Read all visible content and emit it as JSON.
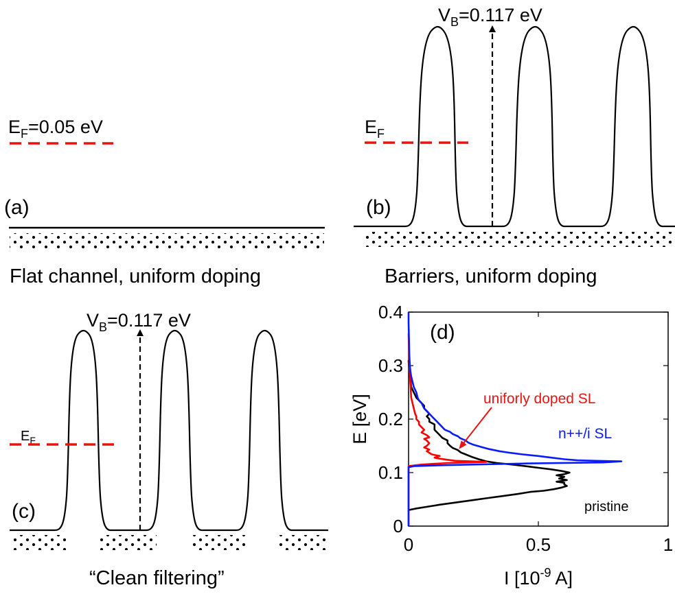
{
  "panels": {
    "a": {
      "letter": "(a)",
      "ef_label": "E",
      "ef_sub": "F",
      "ef_value": "=0.05 eV",
      "caption": "Flat channel, uniform doping"
    },
    "b": {
      "letter": "(b)",
      "ef_label": "E",
      "ef_sub": "F",
      "vb_label": "V",
      "vb_sub": "B",
      "vb_value": "=0.117 eV",
      "caption": "Barriers, uniform doping"
    },
    "c": {
      "letter": "(c)",
      "ef_label": "E",
      "ef_sub": "F",
      "vb_label": "V",
      "vb_sub": "B",
      "vb_value": "=0.117 eV",
      "caption": "“Clean filtering”"
    },
    "d": {
      "letter": "(d)"
    }
  },
  "colors": {
    "fermi_line": "#e8140c",
    "profile": "#000000",
    "pristine": "#000000",
    "uniform_sl": "#ff0000",
    "npp_sl": "#0a1aff",
    "annotation": "#e81414"
  },
  "chart_data": {
    "type": "line",
    "panel": "(d)",
    "xlabel": "I [10",
    "xlabel_exp": "-9",
    "xlabel_unit": " A]",
    "ylabel": "E [eV]",
    "xlim": [
      0,
      1
    ],
    "ylim": [
      0,
      0.4
    ],
    "xticks": [
      "0",
      "0.5",
      "1"
    ],
    "yticks": [
      "0",
      "0.1",
      "0.2",
      "0.3",
      "0.4"
    ],
    "grid": false,
    "series": [
      {
        "name": "pristine",
        "color": "#000000",
        "points": [
          [
            0,
            0.03
          ],
          [
            0.03,
            0.033
          ],
          [
            0.07,
            0.036
          ],
          [
            0.12,
            0.04
          ],
          [
            0.18,
            0.044
          ],
          [
            0.24,
            0.048
          ],
          [
            0.3,
            0.052
          ],
          [
            0.36,
            0.056
          ],
          [
            0.42,
            0.06
          ],
          [
            0.47,
            0.064
          ],
          [
            0.52,
            0.066
          ],
          [
            0.56,
            0.069
          ],
          [
            0.59,
            0.072
          ],
          [
            0.61,
            0.075
          ],
          [
            0.6,
            0.078
          ],
          [
            0.6,
            0.081
          ],
          [
            0.57,
            0.083
          ],
          [
            0.61,
            0.086
          ],
          [
            0.58,
            0.089
          ],
          [
            0.6,
            0.092
          ],
          [
            0.57,
            0.095
          ],
          [
            0.6,
            0.097
          ],
          [
            0.62,
            0.1
          ],
          [
            0.59,
            0.103
          ],
          [
            0.55,
            0.106
          ],
          [
            0.5,
            0.109
          ],
          [
            0.45,
            0.112
          ],
          [
            0.4,
            0.115
          ],
          [
            0.34,
            0.118
          ],
          [
            0.3,
            0.121
          ],
          [
            0.27,
            0.125
          ],
          [
            0.24,
            0.13
          ],
          [
            0.22,
            0.134
          ],
          [
            0.2,
            0.138
          ],
          [
            0.19,
            0.142
          ],
          [
            0.17,
            0.146
          ],
          [
            0.16,
            0.15
          ],
          [
            0.15,
            0.155
          ],
          [
            0.15,
            0.16
          ],
          [
            0.13,
            0.165
          ],
          [
            0.12,
            0.17
          ],
          [
            0.11,
            0.175
          ],
          [
            0.1,
            0.18
          ],
          [
            0.1,
            0.185
          ],
          [
            0.1,
            0.19
          ],
          [
            0.08,
            0.195
          ],
          [
            0.08,
            0.2
          ],
          [
            0.07,
            0.205
          ],
          [
            0.08,
            0.21
          ],
          [
            0.07,
            0.215
          ],
          [
            0.06,
            0.22
          ],
          [
            0.06,
            0.225
          ],
          [
            0.05,
            0.23
          ],
          [
            0.04,
            0.235
          ],
          [
            0.03,
            0.24
          ],
          [
            0.025,
            0.245
          ],
          [
            0.02,
            0.25
          ],
          [
            0.015,
            0.255
          ],
          [
            0.01,
            0.26
          ],
          [
            0.008,
            0.27
          ],
          [
            0.005,
            0.28
          ],
          [
            0.003,
            0.29
          ],
          [
            0.001,
            0.3
          ],
          [
            0,
            0.31
          ]
        ]
      },
      {
        "name": "uniforly doped SL",
        "color": "#ff0000",
        "points": [
          [
            0,
            0
          ],
          [
            0,
            0.05
          ],
          [
            0,
            0.1
          ],
          [
            0,
            0.112
          ],
          [
            0.05,
            0.115
          ],
          [
            0.15,
            0.118
          ],
          [
            0.3,
            0.12
          ],
          [
            0.24,
            0.121
          ],
          [
            0.18,
            0.122
          ],
          [
            0.15,
            0.124
          ],
          [
            0.12,
            0.126
          ],
          [
            0.1,
            0.128
          ],
          [
            0.12,
            0.131
          ],
          [
            0.09,
            0.134
          ],
          [
            0.08,
            0.137
          ],
          [
            0.07,
            0.14
          ],
          [
            0.08,
            0.143
          ],
          [
            0.06,
            0.147
          ],
          [
            0.07,
            0.15
          ],
          [
            0.08,
            0.155
          ],
          [
            0.07,
            0.16
          ],
          [
            0.06,
            0.163
          ],
          [
            0.08,
            0.166
          ],
          [
            0.07,
            0.17
          ],
          [
            0.05,
            0.175
          ],
          [
            0.06,
            0.18
          ],
          [
            0.05,
            0.185
          ],
          [
            0.04,
            0.19
          ],
          [
            0.04,
            0.195
          ],
          [
            0.03,
            0.2
          ],
          [
            0.03,
            0.205
          ],
          [
            0.025,
            0.21
          ],
          [
            0.02,
            0.22
          ],
          [
            0.015,
            0.23
          ],
          [
            0.01,
            0.24
          ],
          [
            0.008,
            0.26
          ],
          [
            0.005,
            0.28
          ],
          [
            0.003,
            0.3
          ],
          [
            0.002,
            0.32
          ],
          [
            0.001,
            0.34
          ],
          [
            0,
            0.36
          ]
        ]
      },
      {
        "name": "n++/i SL",
        "color": "#0a1aff",
        "points": [
          [
            0,
            0
          ],
          [
            0,
            0.05
          ],
          [
            0,
            0.1
          ],
          [
            0,
            0.11
          ],
          [
            0.02,
            0.112
          ],
          [
            0.15,
            0.114
          ],
          [
            0.45,
            0.117
          ],
          [
            0.75,
            0.119
          ],
          [
            0.82,
            0.121
          ],
          [
            0.72,
            0.122
          ],
          [
            0.65,
            0.123
          ],
          [
            0.6,
            0.125
          ],
          [
            0.55,
            0.128
          ],
          [
            0.5,
            0.131
          ],
          [
            0.44,
            0.134
          ],
          [
            0.39,
            0.137
          ],
          [
            0.35,
            0.14
          ],
          [
            0.31,
            0.144
          ],
          [
            0.28,
            0.148
          ],
          [
            0.25,
            0.152
          ],
          [
            0.23,
            0.156
          ],
          [
            0.22,
            0.16
          ],
          [
            0.2,
            0.164
          ],
          [
            0.19,
            0.168
          ],
          [
            0.17,
            0.172
          ],
          [
            0.16,
            0.176
          ],
          [
            0.14,
            0.18
          ],
          [
            0.13,
            0.185
          ],
          [
            0.12,
            0.19
          ],
          [
            0.11,
            0.195
          ],
          [
            0.1,
            0.2
          ],
          [
            0.09,
            0.205
          ],
          [
            0.08,
            0.21
          ],
          [
            0.07,
            0.215
          ],
          [
            0.06,
            0.22
          ],
          [
            0.055,
            0.225
          ],
          [
            0.05,
            0.23
          ],
          [
            0.04,
            0.235
          ],
          [
            0.035,
            0.24
          ],
          [
            0.03,
            0.25
          ],
          [
            0.02,
            0.26
          ],
          [
            0.015,
            0.27
          ],
          [
            0.01,
            0.28
          ],
          [
            0.007,
            0.29
          ],
          [
            0.005,
            0.3
          ],
          [
            0.003,
            0.32
          ],
          [
            0.002,
            0.34
          ],
          [
            0.001,
            0.36
          ],
          [
            0,
            0.38
          ],
          [
            0,
            0.4
          ]
        ]
      }
    ],
    "labels": {
      "uniform_sl": "uniforly doped SL",
      "npp_sl": "n++/i SL",
      "pristine": "pristine"
    }
  }
}
